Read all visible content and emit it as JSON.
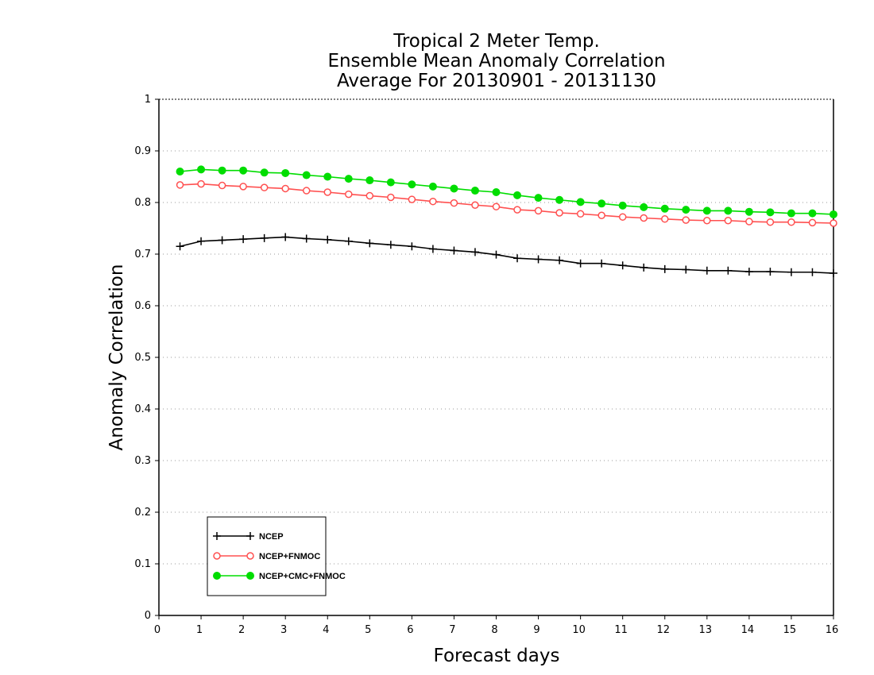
{
  "chart_data": {
    "type": "line",
    "title_lines": [
      "Tropical 2 Meter Temp.",
      "Ensemble Mean Anomaly Correlation",
      "Average For 20130901 - 20131130"
    ],
    "xlabel": "Forecast days",
    "ylabel": "Anomaly Correlation",
    "xlim": [
      0,
      16
    ],
    "ylim": [
      0,
      1
    ],
    "x_ticks": [
      "0",
      "1",
      "2",
      "3",
      "4",
      "5",
      "6",
      "7",
      "8",
      "9",
      "10",
      "11",
      "12",
      "13",
      "14",
      "15",
      "16"
    ],
    "y_ticks": [
      "0",
      "0.1",
      "0.2",
      "0.3",
      "0.4",
      "0.5",
      "0.6",
      "0.7",
      "0.8",
      "0.9",
      "1"
    ],
    "grid": true,
    "legend_position": "bottom-left",
    "x": [
      0.5,
      1,
      1.5,
      2,
      2.5,
      3,
      3.5,
      4,
      4.5,
      5,
      5.5,
      6,
      6.5,
      7,
      7.5,
      8,
      8.5,
      9,
      9.5,
      10,
      10.5,
      11,
      11.5,
      12,
      12.5,
      13,
      13.5,
      14,
      14.5,
      15,
      15.5,
      16
    ],
    "series": [
      {
        "name": "NCEP",
        "color": "#000000",
        "marker": "plus",
        "values": [
          0.715,
          0.725,
          0.727,
          0.729,
          0.731,
          0.733,
          0.73,
          0.728,
          0.725,
          0.721,
          0.718,
          0.715,
          0.71,
          0.707,
          0.704,
          0.699,
          0.692,
          0.69,
          0.688,
          0.682,
          0.682,
          0.678,
          0.674,
          0.671,
          0.67,
          0.668,
          0.668,
          0.666,
          0.666,
          0.665,
          0.665,
          0.663
        ]
      },
      {
        "name": "NCEP+FNMOC",
        "color": "#ff5050",
        "marker": "open-circle",
        "values": [
          0.834,
          0.836,
          0.833,
          0.831,
          0.829,
          0.827,
          0.823,
          0.82,
          0.816,
          0.813,
          0.81,
          0.806,
          0.802,
          0.799,
          0.795,
          0.792,
          0.786,
          0.784,
          0.78,
          0.778,
          0.775,
          0.772,
          0.77,
          0.768,
          0.766,
          0.765,
          0.765,
          0.763,
          0.762,
          0.762,
          0.761,
          0.76
        ]
      },
      {
        "name": "NCEP+CMC+FNMOC",
        "color": "#00dd00",
        "marker": "filled-circle",
        "values": [
          0.86,
          0.864,
          0.862,
          0.862,
          0.858,
          0.857,
          0.853,
          0.85,
          0.846,
          0.843,
          0.839,
          0.835,
          0.831,
          0.827,
          0.823,
          0.82,
          0.814,
          0.809,
          0.805,
          0.801,
          0.798,
          0.794,
          0.791,
          0.788,
          0.786,
          0.784,
          0.784,
          0.782,
          0.781,
          0.779,
          0.779,
          0.777
        ]
      }
    ]
  }
}
